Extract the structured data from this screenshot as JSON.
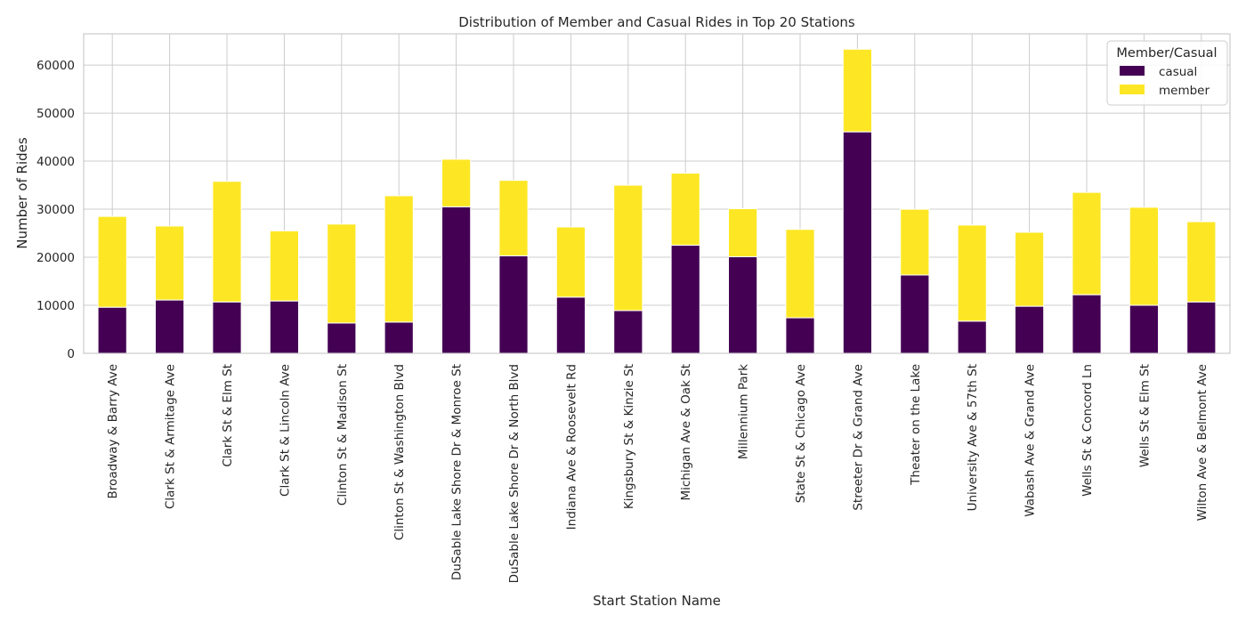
{
  "chart_data": {
    "type": "bar",
    "stacked": true,
    "title": "Distribution of Member and Casual Rides in Top 20 Stations",
    "xlabel": "Start Station Name",
    "ylabel": "Number of Rides",
    "ylim": [
      0,
      66500
    ],
    "yticks": [
      "0",
      "10000",
      "20000",
      "30000",
      "40000",
      "50000",
      "60000"
    ],
    "grid": true,
    "legend_placement": "top-right",
    "legend_title": "Member/Casual",
    "categories": [
      "Broadway & Barry Ave",
      "Clark St & Armitage Ave",
      "Clark St & Elm St",
      "Clark St & Lincoln Ave",
      "Clinton St & Madison St",
      "Clinton St & Washington Blvd",
      "DuSable Lake Shore Dr & Monroe St",
      "DuSable Lake Shore Dr & North Blvd",
      "Indiana Ave & Roosevelt Rd",
      "Kingsbury St & Kinzie St",
      "Michigan Ave & Oak St",
      "Millennium Park",
      "State St & Chicago Ave",
      "Streeter Dr & Grand Ave",
      "Theater on the Lake",
      "University Ave & 57th St",
      "Wabash Ave & Grand Ave",
      "Wells St & Concord Ln",
      "Wells St & Elm St",
      "Wilton Ave & Belmont Ave"
    ],
    "series": [
      {
        "name": "casual",
        "color": "#440154",
        "values": [
          9600,
          11100,
          10700,
          10900,
          6300,
          6500,
          30500,
          20300,
          11700,
          8900,
          22500,
          20100,
          7400,
          46100,
          16300,
          6700,
          9800,
          12200,
          10000,
          10700
        ]
      },
      {
        "name": "member",
        "color": "#fde725",
        "values": [
          18900,
          15400,
          25100,
          14600,
          20600,
          26300,
          9900,
          15700,
          14600,
          26100,
          15000,
          10000,
          18400,
          17200,
          13700,
          20000,
          15400,
          21300,
          20400,
          16700
        ]
      }
    ]
  }
}
